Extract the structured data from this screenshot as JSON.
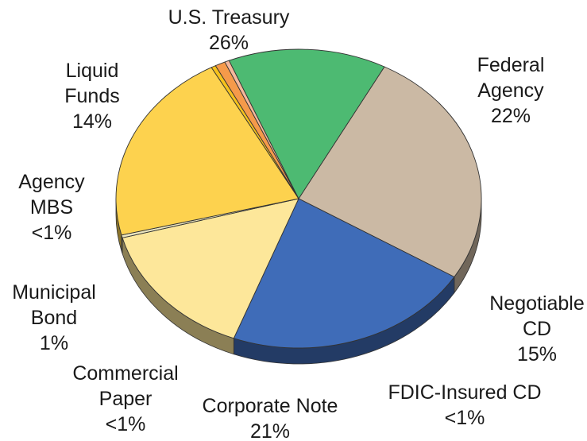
{
  "chart_data": {
    "type": "pie",
    "style": "3d-tilted",
    "slices": [
      {
        "name": "U.S. Treasury",
        "label_lines": [
          "U.S. Treasury"
        ],
        "pct_label": "26%",
        "value": 26,
        "color": "#cbb9a4"
      },
      {
        "name": "Federal Agency",
        "label_lines": [
          "Federal",
          "Agency"
        ],
        "pct_label": "22%",
        "value": 22,
        "color": "#3f6cb8"
      },
      {
        "name": "Negotiable CD",
        "label_lines": [
          "Negotiable",
          "CD"
        ],
        "pct_label": "15%",
        "value": 15,
        "color": "#fde79a"
      },
      {
        "name": "FDIC-Insured CD",
        "label_lines": [
          "FDIC-Insured CD"
        ],
        "pct_label": "<1%",
        "value": 0.3,
        "color": "#ece6bf"
      },
      {
        "name": "Corporate Note",
        "label_lines": [
          "Corporate Note"
        ],
        "pct_label": "21%",
        "value": 21,
        "color": "#fdd24e"
      },
      {
        "name": "Commercial Paper",
        "label_lines": [
          "Commercial",
          "Paper"
        ],
        "pct_label": "<1%",
        "value": 0.4,
        "color": "#f6c21c"
      },
      {
        "name": "Municipal Bond",
        "label_lines": [
          "Municipal",
          "Bond"
        ],
        "pct_label": "1%",
        "value": 0.9,
        "color": "#f59a4a"
      },
      {
        "name": "Agency MBS",
        "label_lines": [
          "Agency",
          "MBS"
        ],
        "pct_label": "<1%",
        "value": 0.4,
        "color": "#f4b89c"
      },
      {
        "name": "Liquid Funds",
        "label_lines": [
          "Liquid",
          "Funds"
        ],
        "pct_label": "14%",
        "value": 14,
        "color": "#4dba72"
      }
    ]
  }
}
